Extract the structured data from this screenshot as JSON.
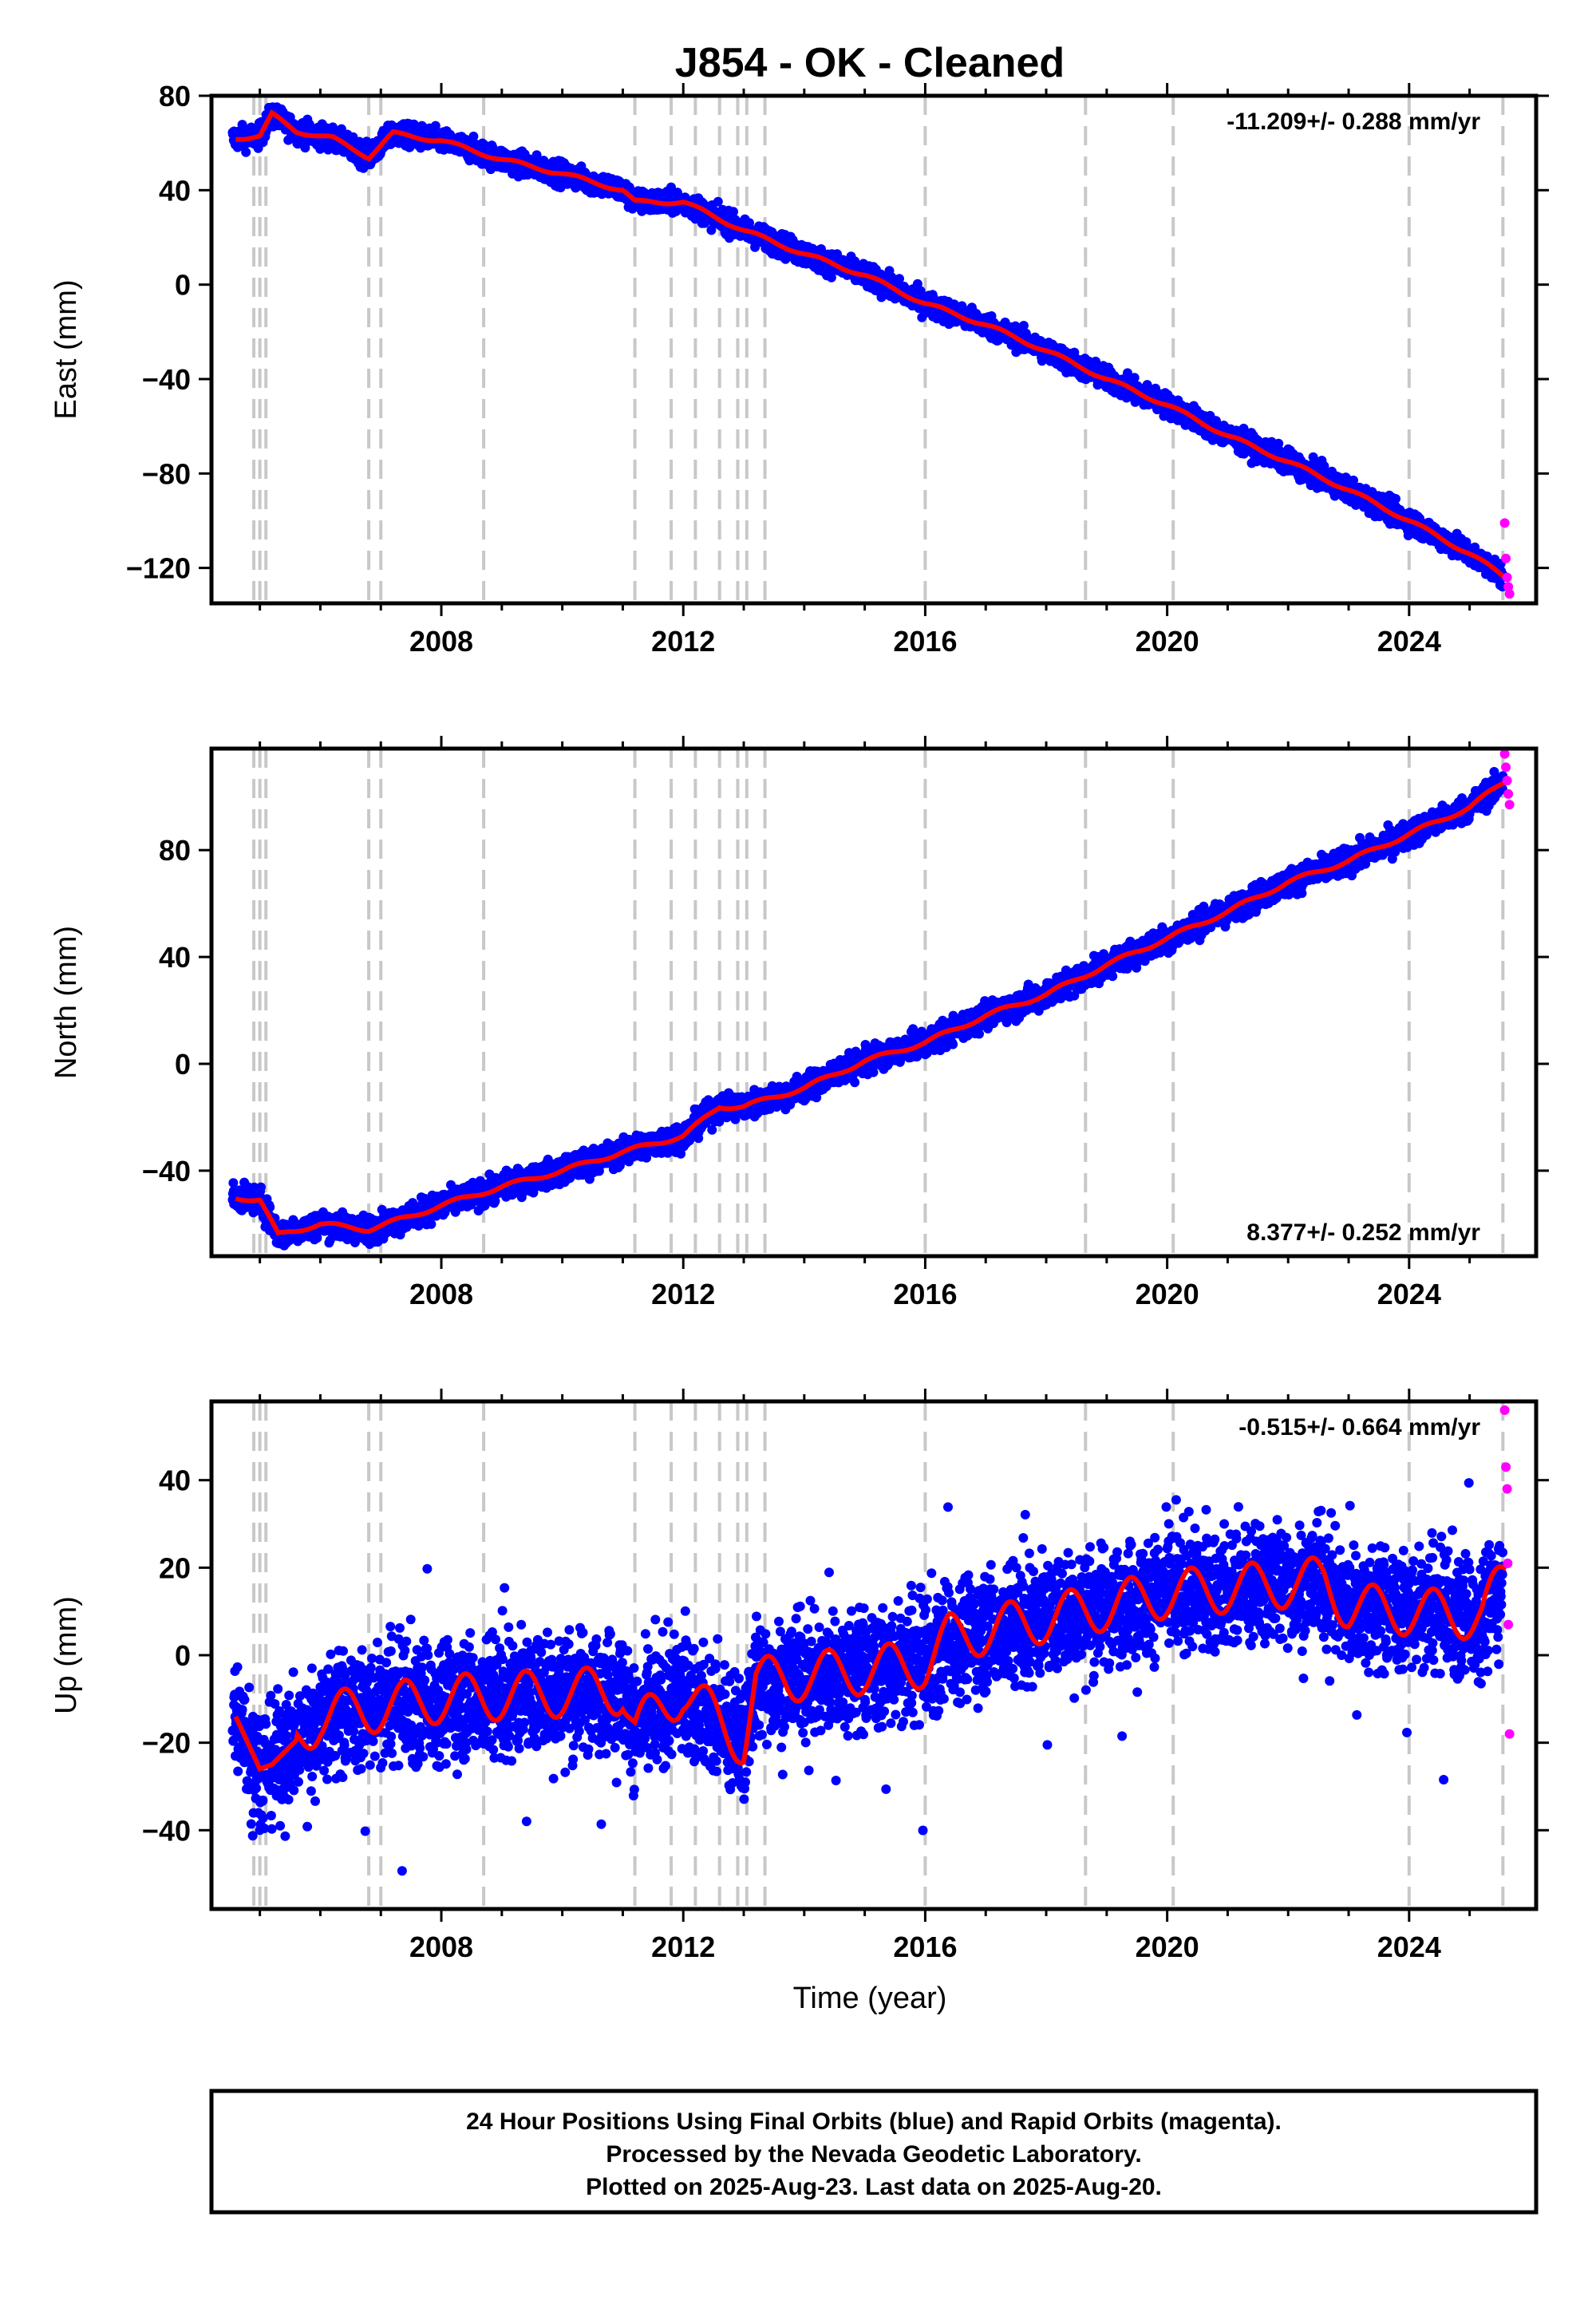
{
  "title": "J854  - OK - Cleaned",
  "xlabel": "Time (year)",
  "footer": [
    "24 Hour Positions Using Final Orbits (blue) and Rapid Orbits (magenta).",
    "Processed by the Nevada Geodetic Laboratory.",
    "Plotted on 2025-Aug-23. Last data on 2025-Aug-20."
  ],
  "colors": {
    "final": "#0000ff",
    "rapid": "#ff00ff",
    "model": "#ff0000",
    "event_lines": "#c8c8c8",
    "frame": "#000000"
  },
  "chart_data": [
    {
      "type": "scatter",
      "panel": "east",
      "ylabel": "East (mm)",
      "annotation": "-11.209+/- 0.288 mm/yr",
      "annotation_position": "top-right",
      "xlim": [
        2004.2,
        2026.1
      ],
      "ylim": [
        -135,
        80
      ],
      "xticks": [
        2008,
        2012,
        2016,
        2020,
        2024
      ],
      "yticks": [
        80,
        40,
        0,
        -40,
        -80,
        -120
      ],
      "ytick_labels": [
        "80",
        "40",
        "0",
        "−40",
        "−80",
        "−120"
      ],
      "trend": {
        "t": [
          2004.6,
          2005.0,
          2005.2,
          2005.6,
          2006.2,
          2006.8,
          2007.2,
          2008.0,
          2009.0,
          2010.0,
          2011.0,
          2011.2,
          2012.0,
          2013.0,
          2014.0,
          2015.0,
          2016.0,
          2017.0,
          2018.0,
          2019.0,
          2020.0,
          2021.0,
          2022.0,
          2023.0,
          2024.0,
          2025.0,
          2025.6
        ],
        "v": [
          62,
          63,
          72,
          65,
          62,
          54,
          64,
          61,
          53,
          47,
          40,
          35,
          35,
          23,
          13,
          4,
          -8,
          -17,
          -28,
          -40,
          -51,
          -64,
          -75,
          -87,
          -100,
          -114,
          -124
        ]
      },
      "series": [
        {
          "name": "Final Orbits",
          "color": "#0000ff",
          "t_start": 2004.55,
          "t_end": 2025.55
        },
        {
          "name": "Rapid Orbits",
          "color": "#ff00ff",
          "t": [
            2025.58,
            2025.6,
            2025.62,
            2025.64,
            2025.66
          ],
          "v": [
            -101,
            -116,
            -124,
            -128,
            -131
          ]
        }
      ],
      "event_lines": [
        2004.9,
        2005.0,
        2005.1,
        2006.8,
        2007.0,
        2008.7,
        2011.2,
        2011.8,
        2012.2,
        2012.6,
        2012.9,
        2013.05,
        2013.35,
        2016.0,
        2018.65,
        2020.1,
        2024.0,
        2025.55
      ]
    },
    {
      "type": "scatter",
      "panel": "north",
      "ylabel": "North (mm)",
      "annotation": "8.377+/- 0.252 mm/yr",
      "annotation_position": "bottom-right",
      "xlim": [
        2004.2,
        2026.1
      ],
      "ylim": [
        -72,
        118
      ],
      "xticks": [
        2008,
        2012,
        2016,
        2020,
        2024
      ],
      "yticks": [
        80,
        40,
        0,
        -40
      ],
      "ytick_labels": [
        "80",
        "40",
        "0",
        "−40"
      ],
      "trend": {
        "t": [
          2004.6,
          2005.0,
          2005.3,
          2006.0,
          2006.8,
          2007.5,
          2008.0,
          2009.0,
          2010.0,
          2011.0,
          2012.0,
          2012.6,
          2013.0,
          2014.0,
          2015.0,
          2016.0,
          2017.0,
          2018.0,
          2019.0,
          2020.0,
          2021.0,
          2022.0,
          2023.0,
          2024.0,
          2025.0,
          2025.6
        ],
        "v": [
          -50,
          -51,
          -64,
          -60,
          -62,
          -57,
          -53,
          -46,
          -40,
          -33,
          -27,
          -16,
          -16,
          -9,
          1,
          8,
          18,
          26,
          37,
          47,
          57,
          68,
          76,
          86,
          96,
          106
        ]
      },
      "series": [
        {
          "name": "Final Orbits",
          "color": "#0000ff",
          "t_start": 2004.55,
          "t_end": 2025.55
        },
        {
          "name": "Rapid Orbits",
          "color": "#ff00ff",
          "t": [
            2025.58,
            2025.6,
            2025.62,
            2025.64,
            2025.66
          ],
          "v": [
            116,
            111,
            106,
            101,
            97
          ]
        }
      ],
      "event_lines": [
        2004.9,
        2005.0,
        2005.1,
        2006.8,
        2007.0,
        2008.7,
        2011.2,
        2011.8,
        2012.2,
        2012.6,
        2012.9,
        2013.05,
        2013.35,
        2016.0,
        2018.65,
        2020.1,
        2024.0,
        2025.55
      ]
    },
    {
      "type": "scatter",
      "panel": "up",
      "ylabel": "Up (mm)",
      "annotation": "-0.515+/- 0.664 mm/yr",
      "annotation_position": "top-right",
      "xlim": [
        2004.2,
        2026.1
      ],
      "ylim": [
        -58,
        58
      ],
      "xticks": [
        2008,
        2012,
        2016,
        2020,
        2024
      ],
      "yticks": [
        40,
        20,
        0,
        -20,
        -40
      ],
      "ytick_labels": [
        "40",
        "20",
        "0",
        "−20",
        "−40"
      ],
      "trend": {
        "t": [
          2004.6,
          2005.0,
          2005.2,
          2006.0,
          2008.0,
          2011.0,
          2011.2,
          2012.0,
          2013.0,
          2013.2,
          2016.0,
          2016.4,
          2018.6,
          2020.0,
          2022.6,
          2023.0,
          2024.0,
          2025.2,
          2025.6
        ],
        "v": [
          -14,
          -26,
          -25,
          -14,
          -10,
          -8,
          -17,
          -8,
          -20,
          -6,
          -2,
          4,
          10,
          14,
          17,
          11,
          10,
          9,
          18
        ]
      },
      "series": [
        {
          "name": "Final Orbits",
          "color": "#0000ff",
          "t_start": 2004.55,
          "t_end": 2025.55
        },
        {
          "name": "Rapid Orbits",
          "color": "#ff00ff",
          "t": [
            2025.58,
            2025.6,
            2025.62,
            2025.63,
            2025.64,
            2025.66
          ],
          "v": [
            56,
            43,
            38,
            21,
            7,
            -18
          ]
        }
      ],
      "event_lines": [
        2004.9,
        2005.0,
        2005.1,
        2006.8,
        2007.0,
        2008.7,
        2011.2,
        2011.8,
        2012.2,
        2012.6,
        2012.9,
        2013.05,
        2013.35,
        2016.0,
        2018.65,
        2020.1,
        2024.0,
        2025.55
      ]
    }
  ]
}
